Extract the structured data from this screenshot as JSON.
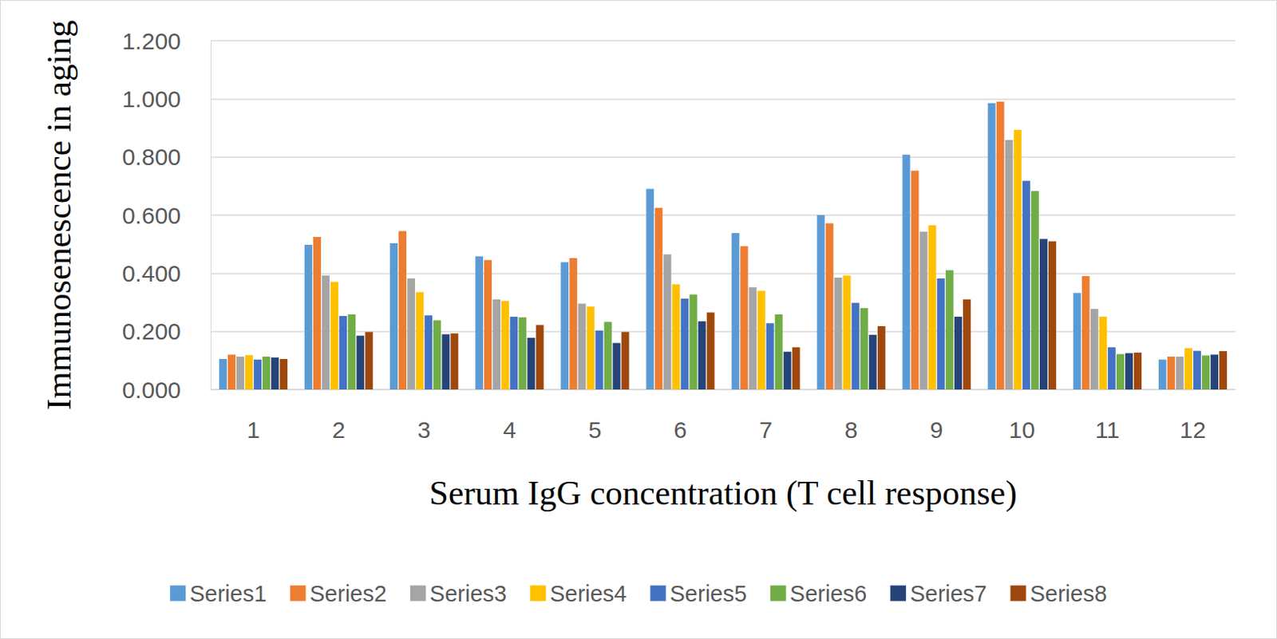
{
  "chart_data": {
    "type": "bar",
    "x_label": "Serum IgG concentration (T cell response)",
    "y_label": "Immunosenescence in aging",
    "categories": [
      "1",
      "2",
      "3",
      "4",
      "5",
      "6",
      "7",
      "8",
      "9",
      "10",
      "11",
      "12"
    ],
    "series": [
      {
        "name": "Series1",
        "color": "#5b9bd5",
        "values": [
          0.105,
          0.498,
          0.503,
          0.458,
          0.438,
          0.69,
          0.538,
          0.6,
          0.808,
          0.985,
          0.332,
          0.103
        ]
      },
      {
        "name": "Series2",
        "color": "#ed7d31",
        "values": [
          0.12,
          0.525,
          0.545,
          0.445,
          0.452,
          0.625,
          0.493,
          0.572,
          0.753,
          0.99,
          0.39,
          0.113
        ]
      },
      {
        "name": "Series3",
        "color": "#a5a5a5",
        "values": [
          0.113,
          0.392,
          0.382,
          0.31,
          0.295,
          0.465,
          0.352,
          0.385,
          0.543,
          0.858,
          0.277,
          0.113
        ]
      },
      {
        "name": "Series4",
        "color": "#ffc000",
        "values": [
          0.118,
          0.37,
          0.335,
          0.305,
          0.285,
          0.362,
          0.34,
          0.392,
          0.565,
          0.893,
          0.25,
          0.142
        ]
      },
      {
        "name": "Series5",
        "color": "#4472c4",
        "values": [
          0.103,
          0.253,
          0.255,
          0.25,
          0.203,
          0.313,
          0.228,
          0.298,
          0.382,
          0.718,
          0.145,
          0.133
        ]
      },
      {
        "name": "Series6",
        "color": "#70ad47",
        "values": [
          0.113,
          0.258,
          0.238,
          0.248,
          0.233,
          0.327,
          0.258,
          0.28,
          0.41,
          0.683,
          0.122,
          0.117
        ]
      },
      {
        "name": "Series7",
        "color": "#264478",
        "values": [
          0.11,
          0.185,
          0.19,
          0.178,
          0.16,
          0.235,
          0.13,
          0.188,
          0.25,
          0.518,
          0.125,
          0.12
        ]
      },
      {
        "name": "Series8",
        "color": "#9e480e",
        "values": [
          0.105,
          0.198,
          0.193,
          0.222,
          0.198,
          0.265,
          0.145,
          0.218,
          0.31,
          0.51,
          0.127,
          0.132
        ]
      }
    ],
    "ylim": [
      0,
      1.2
    ],
    "yticks": [
      {
        "value": 0,
        "label": "0.000"
      },
      {
        "value": 0.2,
        "label": "0.200"
      },
      {
        "value": 0.4,
        "label": "0.400"
      },
      {
        "value": 0.6,
        "label": "0.600"
      },
      {
        "value": 0.8,
        "label": "0.800"
      },
      {
        "value": 1.0,
        "label": "1.000"
      },
      {
        "value": 1.2,
        "label": "1.200"
      }
    ],
    "grid": true,
    "legend": "bottom"
  }
}
